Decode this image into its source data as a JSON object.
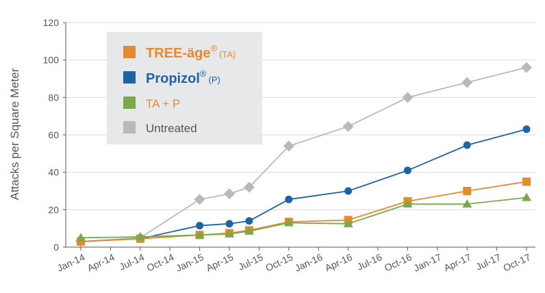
{
  "chart_data": {
    "type": "line",
    "title": "",
    "xlabel": "",
    "ylabel": "Attacks per Square Meter",
    "ylim": [
      0,
      120
    ],
    "yticks": [
      0,
      20,
      40,
      60,
      80,
      100,
      120
    ],
    "xlim": [
      "2014-01",
      "2017-10"
    ],
    "xticks": [
      {
        "label": "Jan-14",
        "date": "2014-01"
      },
      {
        "label": "Apr-14",
        "date": "2014-04"
      },
      {
        "label": "Jul-14",
        "date": "2014-07"
      },
      {
        "label": "Oct-14",
        "date": "2014-10"
      },
      {
        "label": "Jan-15",
        "date": "2015-01"
      },
      {
        "label": "Apr-15",
        "date": "2015-04"
      },
      {
        "label": "Jul-15",
        "date": "2015-07"
      },
      {
        "label": "Oct-15",
        "date": "2015-10"
      },
      {
        "label": "Jan-16",
        "date": "2016-01"
      },
      {
        "label": "Apr-16",
        "date": "2016-04"
      },
      {
        "label": "Jul-16",
        "date": "2016-07"
      },
      {
        "label": "Oct-16",
        "date": "2016-10"
      },
      {
        "label": "Jan-17",
        "date": "2017-01"
      },
      {
        "label": "Apr-17",
        "date": "2017-04"
      },
      {
        "label": "Jul-17",
        "date": "2017-07"
      },
      {
        "label": "Oct-17",
        "date": "2017-10"
      }
    ],
    "grid": "horizontal",
    "legend_position": "top-left",
    "series": [
      {
        "name": "Untreated",
        "color": "#b8b9bb",
        "marker": "diamond",
        "points": [
          {
            "x": "2014-01",
            "y": 3
          },
          {
            "x": "2014-07",
            "y": 5
          },
          {
            "x": "2015-01",
            "y": 25.5
          },
          {
            "x": "2015-04",
            "y": 28.5
          },
          {
            "x": "2015-06",
            "y": 32
          },
          {
            "x": "2015-10",
            "y": 54
          },
          {
            "x": "2016-04",
            "y": 64.5
          },
          {
            "x": "2016-10",
            "y": 80
          },
          {
            "x": "2017-04",
            "y": 88
          },
          {
            "x": "2017-10",
            "y": 96
          }
        ]
      },
      {
        "name": "Propizol (P)",
        "color": "#1d63a8",
        "marker": "circle",
        "points": [
          {
            "x": "2014-01",
            "y": 3
          },
          {
            "x": "2014-07",
            "y": 4.5
          },
          {
            "x": "2015-01",
            "y": 11.5
          },
          {
            "x": "2015-04",
            "y": 12.5
          },
          {
            "x": "2015-06",
            "y": 14
          },
          {
            "x": "2015-10",
            "y": 25.5
          },
          {
            "x": "2016-04",
            "y": 30
          },
          {
            "x": "2016-10",
            "y": 41
          },
          {
            "x": "2017-04",
            "y": 54.5
          },
          {
            "x": "2017-10",
            "y": 63
          }
        ]
      },
      {
        "name": "TREE-äge (TA)",
        "color": "#e68a2e",
        "marker": "square",
        "points": [
          {
            "x": "2014-01",
            "y": 3
          },
          {
            "x": "2014-07",
            "y": 4.5
          },
          {
            "x": "2015-01",
            "y": 6.5
          },
          {
            "x": "2015-04",
            "y": 7.5
          },
          {
            "x": "2015-06",
            "y": 9
          },
          {
            "x": "2015-10",
            "y": 13.5
          },
          {
            "x": "2016-04",
            "y": 14.5
          },
          {
            "x": "2016-10",
            "y": 24.5
          },
          {
            "x": "2017-04",
            "y": 30
          },
          {
            "x": "2017-10",
            "y": 35
          }
        ]
      },
      {
        "name": "TA + P",
        "color": "#79a94b",
        "marker": "triangle",
        "points": [
          {
            "x": "2014-01",
            "y": 5
          },
          {
            "x": "2014-07",
            "y": 5.5
          },
          {
            "x": "2015-01",
            "y": 6.5
          },
          {
            "x": "2015-04",
            "y": 7
          },
          {
            "x": "2015-06",
            "y": 8.5
          },
          {
            "x": "2015-10",
            "y": 13
          },
          {
            "x": "2016-04",
            "y": 12.5
          },
          {
            "x": "2016-10",
            "y": 23
          },
          {
            "x": "2017-04",
            "y": 23
          },
          {
            "x": "2017-10",
            "y": 26.5
          }
        ]
      }
    ],
    "legend": {
      "entries": [
        {
          "key": "ta",
          "brand": "TREE-äge",
          "mark": "®",
          "suffix": "(TA)",
          "color": "#e68a2e",
          "text_color": "#e68a2e",
          "marker": "square"
        },
        {
          "key": "p",
          "brand": "Propizol",
          "mark": "®",
          "suffix": "(P)",
          "color": "#1d63a8",
          "text_color": "#1d63a8",
          "marker": "square"
        },
        {
          "key": "tap",
          "label": "TA + P",
          "color": "#79a94b",
          "text_color": "#e68a2e",
          "marker": "square"
        },
        {
          "key": "untreated",
          "label": "Untreated",
          "color": "#b8b9bb",
          "text_color": "#555555",
          "marker": "square"
        }
      ],
      "background": "#e7e8e9"
    },
    "axis_color": "#555555",
    "grid_color": "#d9d9d9"
  }
}
